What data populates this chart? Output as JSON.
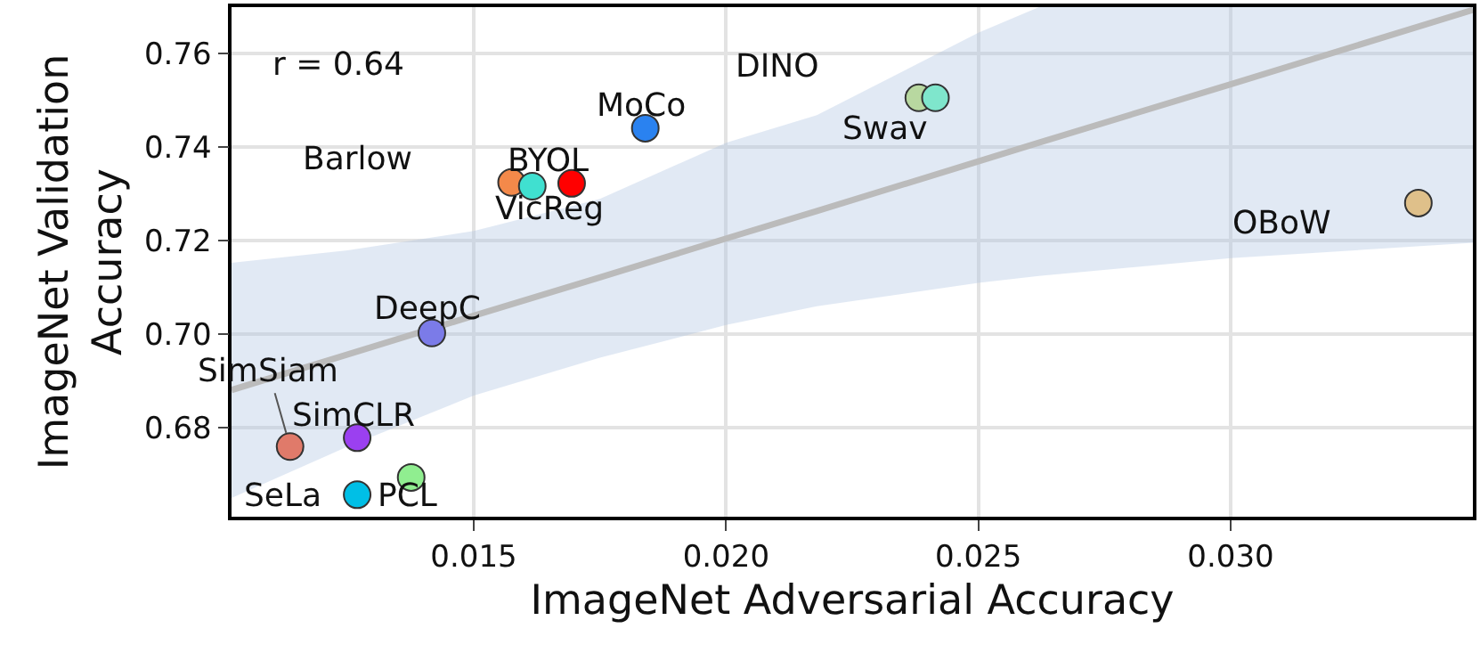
{
  "chart_data": {
    "type": "scatter",
    "xlabel": "ImageNet Adversarial Accuracy",
    "ylabel": "ImageNet Validation\nAccuracy",
    "xlim": [
      0.0102,
      0.0348
    ],
    "ylim": [
      0.661,
      0.77
    ],
    "xticks": [
      {
        "value": 0.015,
        "label": "0.015"
      },
      {
        "value": 0.02,
        "label": "0.020"
      },
      {
        "value": 0.025,
        "label": "0.025"
      },
      {
        "value": 0.03,
        "label": "0.030"
      }
    ],
    "yticks": [
      {
        "value": 0.68,
        "label": "0.68"
      },
      {
        "value": 0.7,
        "label": "0.70"
      },
      {
        "value": 0.72,
        "label": "0.72"
      },
      {
        "value": 0.74,
        "label": "0.74"
      },
      {
        "value": 0.76,
        "label": "0.76"
      }
    ],
    "grid": true,
    "series": [
      {
        "name": "MoCo",
        "color": "#2a82f0",
        "marker": "circle",
        "x": [
          0.0184
        ],
        "values": [
          0.7441
        ]
      },
      {
        "name": "Barlow",
        "color": "#f4894a",
        "marker": "circle",
        "x": [
          0.01575
        ],
        "values": [
          0.7325
        ]
      },
      {
        "name": "VicReg",
        "color": "#40e0d0",
        "marker": "circle",
        "x": [
          0.01616
        ],
        "values": [
          0.7317
        ]
      },
      {
        "name": "BYOL",
        "color": "#ff0000",
        "marker": "circle",
        "x": [
          0.01694
        ],
        "values": [
          0.7323
        ]
      },
      {
        "name": "DINO",
        "color": "#b8d8a0",
        "marker": "circle",
        "x": [
          0.02382
        ],
        "values": [
          0.7506
        ]
      },
      {
        "name": "Swav",
        "color": "#7fe6cc",
        "marker": "circle",
        "x": [
          0.02415
        ],
        "values": [
          0.7506
        ]
      },
      {
        "name": "OBoW",
        "color": "#dfc08a",
        "marker": "circle",
        "x": [
          0.03372
        ],
        "values": [
          0.7281
        ]
      },
      {
        "name": "DeepC",
        "color": "#7b7be8",
        "marker": "circle",
        "x": [
          0.01417
        ],
        "values": [
          0.7003
        ]
      },
      {
        "name": "SimSiam",
        "color": "#e07a6a",
        "marker": "circle",
        "x": [
          0.01136
        ],
        "values": [
          0.676
        ]
      },
      {
        "name": "SimCLR",
        "color": "#9b40f0",
        "marker": "circle",
        "x": [
          0.01269
        ],
        "values": [
          0.6779
        ]
      },
      {
        "name": "PCL",
        "color": "#90ee90",
        "marker": "circle",
        "x": [
          0.01376
        ],
        "values": [
          0.6694
        ]
      },
      {
        "name": "SeLa",
        "color": "#00bfe6",
        "marker": "circle",
        "x": [
          0.01269
        ],
        "values": [
          0.6657
        ]
      },
      {
        "type": "line",
        "color": "#bbbbbb",
        "x": [
          0.0102,
          0.0125,
          0.015,
          0.0175,
          0.02,
          0.0218,
          0.025,
          0.0262,
          0.03,
          0.0348
        ],
        "values": [
          0.6881,
          0.6957,
          0.704,
          0.7122,
          0.7205,
          0.7264,
          0.737,
          0.741,
          0.7535,
          0.7694
        ],
        "lower": [
          0.665,
          0.676,
          0.6869,
          0.695,
          0.702,
          0.706,
          0.711,
          0.7125,
          0.7163,
          0.7196
        ],
        "upper": [
          0.7153,
          0.718,
          0.7221,
          0.729,
          0.741,
          0.7469,
          0.7645,
          0.77,
          0.77,
          0.77
        ]
      }
    ],
    "annotations": [
      "r = 0.64"
    ]
  }
}
